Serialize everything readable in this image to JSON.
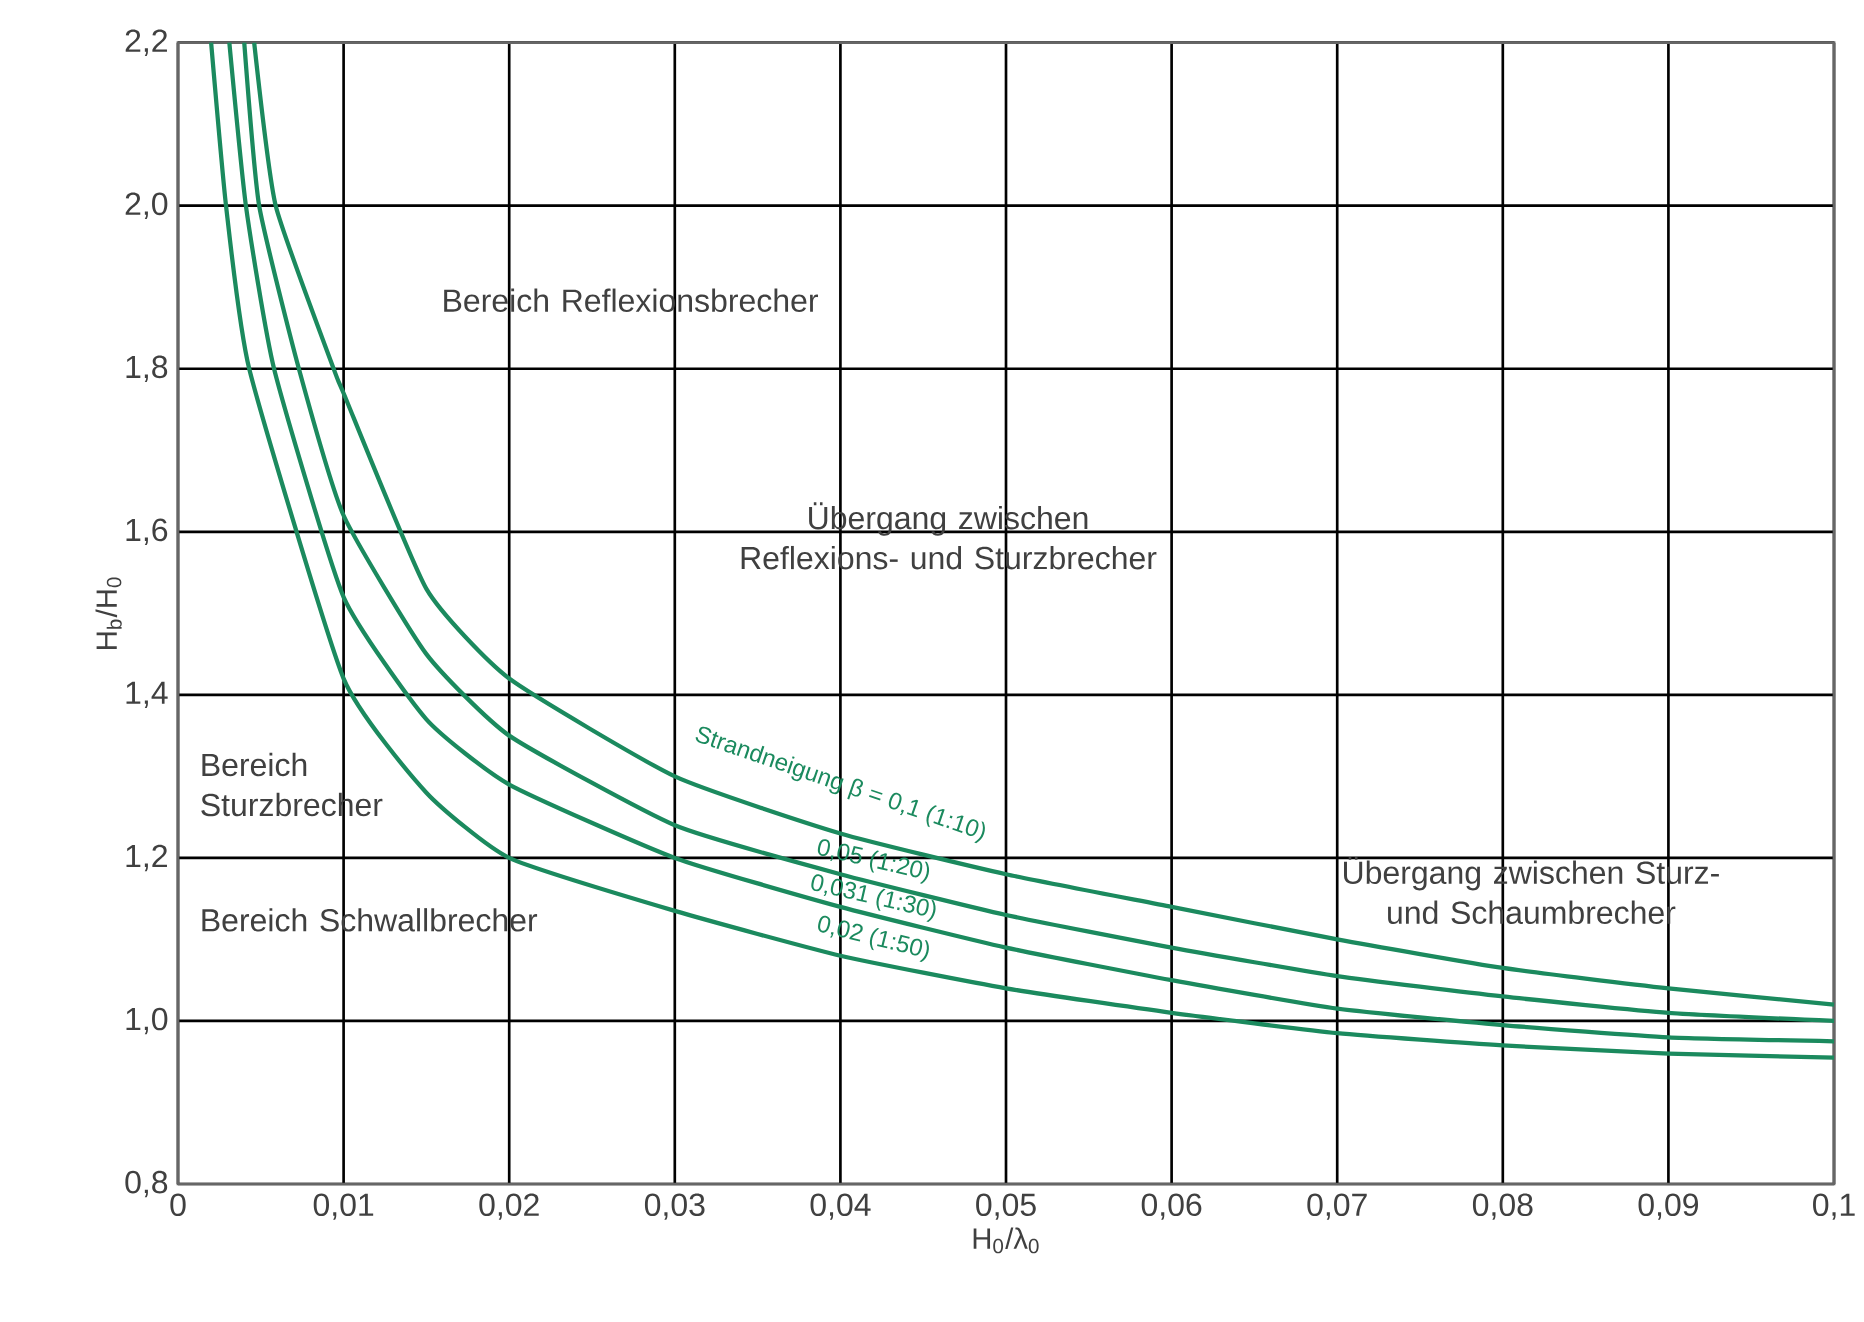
{
  "chart_data": {
    "type": "line",
    "xlabel": "H$_{0}$/λ$_{0}$",
    "ylabel": "H$_{b}$/H$_{0}$",
    "xlim": [
      0,
      0.1
    ],
    "ylim": [
      0.8,
      2.2
    ],
    "xticks": [
      0,
      {
        "value": 0.01,
        "label": "0,01"
      },
      {
        "value": 0.02,
        "label": "0,02"
      },
      {
        "value": 0.03,
        "label": "0,03"
      },
      {
        "value": 0.04,
        "label": "0,04"
      },
      {
        "value": 0.05,
        "label": "0,05"
      },
      {
        "value": 0.06,
        "label": "0,06"
      },
      {
        "value": 0.07,
        "label": "0,07"
      },
      {
        "value": 0.08,
        "label": "0,08"
      },
      {
        "value": 0.09,
        "label": "0,09"
      },
      {
        "value": 0.1,
        "label": "0,1"
      }
    ],
    "yticks": [
      {
        "value": 0.8,
        "label": "0,8"
      },
      {
        "value": 1.0,
        "label": "1,0"
      },
      {
        "value": 1.2,
        "label": "1,2"
      },
      {
        "value": 1.4,
        "label": "1,4"
      },
      {
        "value": 1.6,
        "label": "1,6"
      },
      {
        "value": 1.8,
        "label": "1,8"
      },
      {
        "value": 2.0,
        "label": "2,0"
      },
      {
        "value": 2.2,
        "label": "2,2"
      }
    ],
    "grid": true,
    "marker": "none",
    "line_style": "solid",
    "series": [
      {
        "name": "Strandneigung β = 0,1 (1:10)",
        "color": "#1b8a5e",
        "x": [
          0.0046,
          0.0059,
          0.0094,
          0.01,
          0.015,
          0.02,
          0.03,
          0.04,
          0.05,
          0.06,
          0.07,
          0.08,
          0.09,
          0.1
        ],
        "values": [
          2.2,
          2.0,
          1.8,
          1.77,
          1.53,
          1.42,
          1.3,
          1.23,
          1.18,
          1.14,
          1.1,
          1.065,
          1.04,
          1.02
        ]
      },
      {
        "name": "0,05 (1:20)",
        "color": "#1b8a5e",
        "x": [
          0.004,
          0.0049,
          0.0073,
          0.01,
          0.015,
          0.02,
          0.03,
          0.04,
          0.05,
          0.06,
          0.07,
          0.08,
          0.09,
          0.1
        ],
        "values": [
          2.2,
          2.0,
          1.8,
          1.62,
          1.45,
          1.35,
          1.24,
          1.18,
          1.13,
          1.09,
          1.055,
          1.03,
          1.01,
          1.0
        ]
      },
      {
        "name": "0,031 (1:30)",
        "color": "#1b8a5e",
        "x": [
          0.0031,
          0.0041,
          0.0058,
          0.01,
          0.015,
          0.02,
          0.03,
          0.04,
          0.05,
          0.06,
          0.07,
          0.08,
          0.09,
          0.1
        ],
        "values": [
          2.2,
          2.0,
          1.8,
          1.52,
          1.37,
          1.29,
          1.2,
          1.14,
          1.09,
          1.05,
          1.015,
          0.995,
          0.98,
          0.975
        ]
      },
      {
        "name": "0,02 (1:50)",
        "color": "#1b8a5e",
        "x": [
          0.002,
          0.0029,
          0.0043,
          0.01,
          0.015,
          0.02,
          0.03,
          0.04,
          0.05,
          0.06,
          0.07,
          0.08,
          0.09,
          0.1
        ],
        "values": [
          2.2,
          2.0,
          1.8,
          1.42,
          1.28,
          1.2,
          1.135,
          1.08,
          1.04,
          1.01,
          0.985,
          0.97,
          0.96,
          0.955
        ]
      }
    ],
    "annotations": [
      "Bereich Reflexionsbrecher",
      "Übergang zwischen Reflexions- und Sturzbrecher",
      "Bereich Sturzbrecher",
      "Bereich Schwallbrecher",
      "Übergang zwischen Sturz- und Schaumbrecher"
    ]
  }
}
